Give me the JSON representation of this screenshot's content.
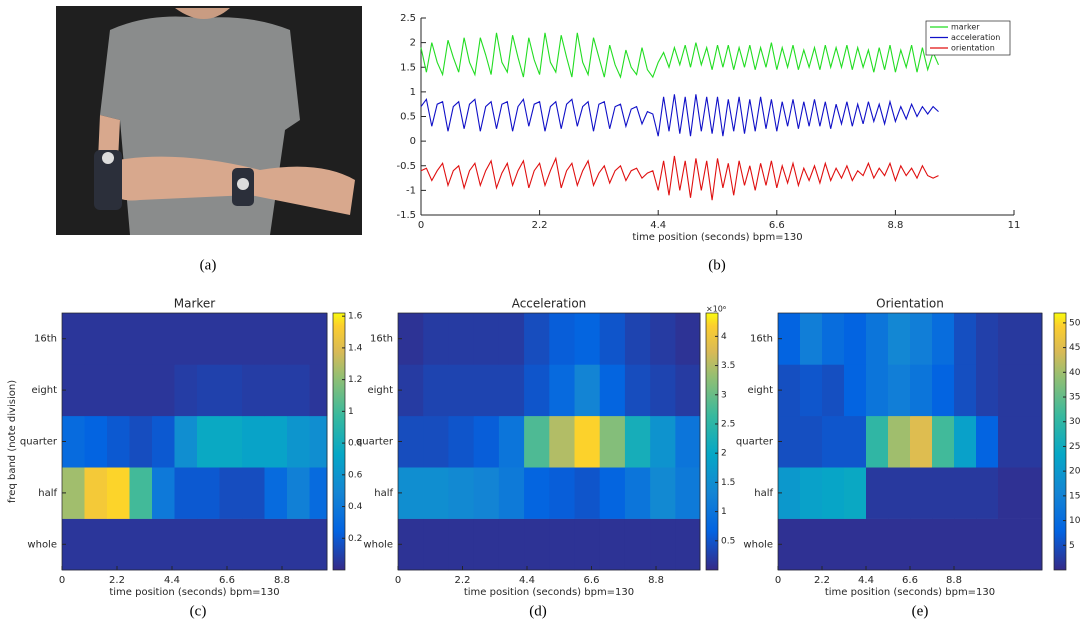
{
  "photo": {
    "caption": "(a)"
  },
  "chart_data": [
    {
      "type": "line",
      "caption": "(b)",
      "xlabel": "time position (seconds)  bpm=130",
      "xlim": [
        0,
        11
      ],
      "xticks": [
        0,
        2.2,
        4.4,
        6.6,
        8.8,
        11
      ],
      "ylim": [
        -1.5,
        2.5
      ],
      "yticks": [
        -1.5,
        -1,
        -0.5,
        0,
        0.5,
        1,
        1.5,
        2,
        2.5
      ],
      "legend": "upper right",
      "x": [
        0,
        0.1,
        0.2,
        0.3,
        0.4,
        0.5,
        0.6,
        0.7,
        0.8,
        0.9,
        1,
        1.1,
        1.2,
        1.3,
        1.4,
        1.5,
        1.6,
        1.7,
        1.8,
        1.9,
        2,
        2.1,
        2.2,
        2.3,
        2.4,
        2.5,
        2.6,
        2.7,
        2.8,
        2.9,
        3,
        3.1,
        3.2,
        3.3,
        3.4,
        3.5,
        3.6,
        3.7,
        3.8,
        3.9,
        4,
        4.1,
        4.2,
        4.3,
        4.4,
        4.5,
        4.6,
        4.7,
        4.8,
        4.9,
        5,
        5.1,
        5.2,
        5.3,
        5.4,
        5.5,
        5.6,
        5.7,
        5.8,
        5.9,
        6,
        6.1,
        6.2,
        6.3,
        6.4,
        6.5,
        6.6,
        6.7,
        6.8,
        6.9,
        7,
        7.1,
        7.2,
        7.3,
        7.4,
        7.5,
        7.6,
        7.7,
        7.8,
        7.9,
        8,
        8.1,
        8.2,
        8.3,
        8.4,
        8.5,
        8.6,
        8.7,
        8.8,
        8.9,
        9,
        9.1,
        9.2,
        9.3,
        9.4,
        9.5,
        9.6
      ],
      "series": [
        {
          "name": "marker",
          "color": "#22dd22",
          "values": [
            1.9,
            1.4,
            2.0,
            1.6,
            1.35,
            2.05,
            1.7,
            1.4,
            2.1,
            1.6,
            1.35,
            2.1,
            1.75,
            1.35,
            2.2,
            1.6,
            1.4,
            2.15,
            1.7,
            1.3,
            2.1,
            1.65,
            1.35,
            2.2,
            1.6,
            1.4,
            2.15,
            1.7,
            1.3,
            2.2,
            1.6,
            1.35,
            2.1,
            1.7,
            1.3,
            1.95,
            1.55,
            1.3,
            1.85,
            1.5,
            1.35,
            1.9,
            1.45,
            1.3,
            1.6,
            1.8,
            1.5,
            1.9,
            1.55,
            1.95,
            1.5,
            2.0,
            1.55,
            1.9,
            1.45,
            1.95,
            1.5,
            1.95,
            1.45,
            1.9,
            1.5,
            1.95,
            1.45,
            1.9,
            1.5,
            2.0,
            1.45,
            1.9,
            1.5,
            1.95,
            1.45,
            1.85,
            1.5,
            1.9,
            1.45,
            1.95,
            1.5,
            1.9,
            1.5,
            1.95,
            1.45,
            1.9,
            1.5,
            1.85,
            1.4,
            1.9,
            1.45,
            1.95,
            1.4,
            1.85,
            1.5,
            1.95,
            1.4,
            1.9,
            1.45,
            1.8,
            1.55
          ]
        },
        {
          "name": "acceleration",
          "color": "#1010c8",
          "values": [
            0.7,
            0.85,
            0.3,
            0.75,
            0.8,
            0.2,
            0.7,
            0.8,
            0.25,
            0.75,
            0.85,
            0.2,
            0.7,
            0.8,
            0.25,
            0.75,
            0.8,
            0.2,
            0.7,
            0.85,
            0.3,
            0.75,
            0.8,
            0.2,
            0.7,
            0.8,
            0.25,
            0.75,
            0.85,
            0.3,
            0.7,
            0.8,
            0.2,
            0.75,
            0.8,
            0.25,
            0.7,
            0.75,
            0.3,
            0.65,
            0.7,
            0.35,
            0.6,
            0.55,
            0.1,
            0.9,
            0.2,
            0.95,
            0.15,
            0.9,
            0.1,
            0.95,
            0.2,
            0.9,
            0.15,
            0.9,
            0.1,
            0.85,
            0.2,
            0.9,
            0.15,
            0.85,
            0.2,
            0.9,
            0.25,
            0.85,
            0.2,
            0.8,
            0.3,
            0.85,
            0.25,
            0.8,
            0.3,
            0.85,
            0.3,
            0.8,
            0.25,
            0.75,
            0.35,
            0.8,
            0.3,
            0.75,
            0.35,
            0.8,
            0.4,
            0.75,
            0.35,
            0.8,
            0.4,
            0.7,
            0.45,
            0.75,
            0.5,
            0.7,
            0.55,
            0.7,
            0.6
          ]
        },
        {
          "name": "orientation",
          "color": "#e01010",
          "values": [
            -0.6,
            -0.55,
            -0.8,
            -0.6,
            -0.45,
            -0.9,
            -0.6,
            -0.5,
            -0.95,
            -0.6,
            -0.45,
            -0.9,
            -0.6,
            -0.4,
            -0.95,
            -0.65,
            -0.45,
            -0.9,
            -0.6,
            -0.4,
            -0.95,
            -0.6,
            -0.45,
            -0.9,
            -0.6,
            -0.35,
            -0.95,
            -0.6,
            -0.45,
            -0.9,
            -0.6,
            -0.4,
            -0.9,
            -0.65,
            -0.5,
            -0.85,
            -0.6,
            -0.5,
            -0.8,
            -0.6,
            -0.55,
            -0.75,
            -0.65,
            -0.6,
            -1.0,
            -0.4,
            -1.1,
            -0.3,
            -1.0,
            -0.4,
            -1.15,
            -0.35,
            -1.0,
            -0.4,
            -1.2,
            -0.35,
            -0.95,
            -0.45,
            -1.1,
            -0.4,
            -0.9,
            -0.5,
            -1.0,
            -0.45,
            -0.9,
            -0.4,
            -0.95,
            -0.5,
            -0.85,
            -0.45,
            -0.9,
            -0.55,
            -0.8,
            -0.5,
            -0.85,
            -0.45,
            -0.8,
            -0.55,
            -0.75,
            -0.5,
            -0.8,
            -0.6,
            -0.7,
            -0.45,
            -0.75,
            -0.55,
            -0.7,
            -0.45,
            -0.8,
            -0.5,
            -0.7,
            -0.55,
            -0.75,
            -0.5,
            -0.7,
            -0.75,
            -0.7
          ]
        }
      ]
    },
    {
      "type": "heatmap",
      "title": "Marker",
      "caption": "(c)",
      "xlabel": "time position (seconds)  bpm=130",
      "ylabel": "freq band (note division)",
      "xlim": [
        0,
        10.6
      ],
      "xticks": [
        0,
        2.2,
        4.4,
        6.6,
        8.8
      ],
      "bins": [
        0,
        0.9,
        1.8,
        2.7,
        3.6,
        4.5,
        5.4,
        6.3,
        7.2,
        8.1,
        9.0,
        9.9,
        10.6
      ],
      "categories": [
        "whole",
        "half",
        "quarter",
        "eight",
        "16th"
      ],
      "clim": [
        0,
        1.62
      ],
      "cticks": [
        0.2,
        0.4,
        0.6,
        0.8,
        1,
        1.2,
        1.4,
        1.6
      ],
      "values": [
        [
          0.05,
          0.05,
          0.05,
          0.05,
          0.05,
          0.05,
          0.05,
          0.05,
          0.05,
          0.05,
          0.05,
          0.05
        ],
        [
          1.25,
          1.5,
          1.55,
          1.0,
          0.4,
          0.2,
          0.2,
          0.15,
          0.15,
          0.3,
          0.45,
          0.3
        ],
        [
          0.3,
          0.25,
          0.2,
          0.15,
          0.2,
          0.55,
          0.75,
          0.75,
          0.7,
          0.7,
          0.6,
          0.55
        ],
        [
          0.05,
          0.05,
          0.05,
          0.05,
          0.05,
          0.08,
          0.1,
          0.1,
          0.08,
          0.08,
          0.08,
          0.05
        ],
        [
          0.05,
          0.05,
          0.05,
          0.05,
          0.05,
          0.05,
          0.05,
          0.05,
          0.05,
          0.05,
          0.05,
          0.05
        ]
      ]
    },
    {
      "type": "heatmap",
      "title": "Acceleration",
      "caption": "(d)",
      "xlabel": "time position (seconds)  bpm=130",
      "xlim": [
        0,
        10.3
      ],
      "xticks": [
        0,
        2.2,
        4.4,
        6.6,
        8.8
      ],
      "bins": [
        0,
        0.86,
        1.72,
        2.58,
        3.44,
        4.3,
        5.16,
        6.02,
        6.88,
        7.74,
        8.6,
        9.46,
        10.3
      ],
      "categories": [
        "whole",
        "half",
        "quarter",
        "eight",
        "16th"
      ],
      "clim": [
        0,
        4.4
      ],
      "cticks": [
        0.5,
        1,
        1.5,
        2,
        2.5,
        3,
        3.5,
        4
      ],
      "colorbar_label": "×10⁶",
      "values": [
        [
          0.1,
          0.1,
          0.1,
          0.1,
          0.1,
          0.1,
          0.1,
          0.1,
          0.1,
          0.1,
          0.1,
          0.1
        ],
        [
          1.5,
          1.5,
          1.4,
          1.3,
          1.1,
          0.7,
          0.6,
          0.5,
          0.7,
          1.0,
          1.4,
          1.1
        ],
        [
          0.4,
          0.4,
          0.5,
          0.6,
          1.0,
          2.8,
          3.5,
          4.2,
          3.2,
          2.2,
          1.6,
          1.0
        ],
        [
          0.2,
          0.3,
          0.3,
          0.3,
          0.3,
          0.5,
          0.8,
          1.3,
          0.7,
          0.4,
          0.3,
          0.2
        ],
        [
          0.1,
          0.2,
          0.2,
          0.2,
          0.2,
          0.4,
          0.6,
          0.7,
          0.5,
          0.3,
          0.2,
          0.1
        ]
      ]
    },
    {
      "type": "heatmap",
      "title": "Orientation",
      "caption": "(e)",
      "xlabel": "time position (seconds)  bpm=130",
      "xlim": [
        0,
        13.2
      ],
      "xticks": [
        0,
        2.2,
        4.4,
        6.6,
        8.8
      ],
      "bins": [
        0,
        1.1,
        2.2,
        3.3,
        4.4,
        5.5,
        6.6,
        7.7,
        8.8,
        9.9,
        11,
        12.1,
        13.2
      ],
      "categories": [
        "whole",
        "half",
        "quarter",
        "eight",
        "16th"
      ],
      "clim": [
        0,
        52
      ],
      "cticks": [
        5,
        10,
        15,
        20,
        25,
        30,
        35,
        40,
        45,
        50
      ],
      "values": [
        [
          1,
          1,
          1,
          1,
          1,
          1,
          1,
          1,
          1,
          1,
          1,
          1
        ],
        [
          20,
          22,
          23,
          24,
          2,
          2,
          2,
          2,
          2,
          2,
          1,
          1
        ],
        [
          5,
          5,
          6,
          6,
          30,
          40,
          45,
          32,
          22,
          8,
          2,
          2
        ],
        [
          5,
          6,
          5,
          8,
          12,
          14,
          12,
          8,
          5,
          3,
          2,
          2
        ],
        [
          8,
          14,
          10,
          8,
          12,
          16,
          14,
          10,
          5,
          3,
          2,
          2
        ]
      ]
    }
  ]
}
